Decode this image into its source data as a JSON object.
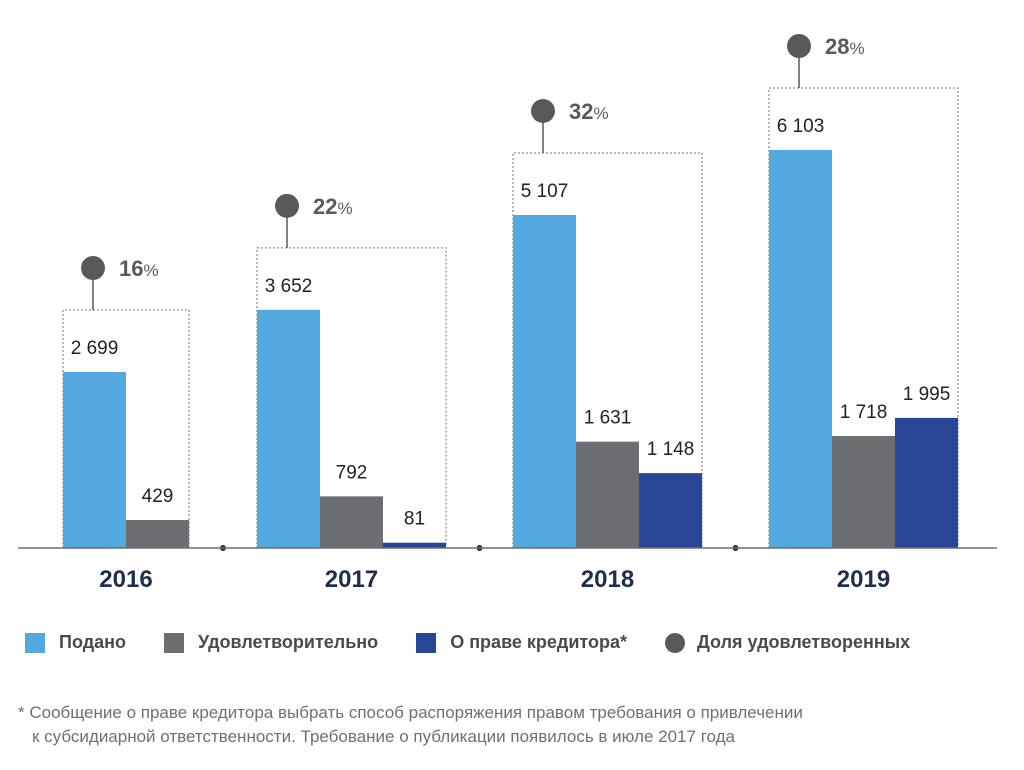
{
  "chart_data": {
    "type": "bar",
    "categories": [
      "2016",
      "2017",
      "2018",
      "2019"
    ],
    "series": [
      {
        "name": "Подано",
        "color": "#53a8e0",
        "values": [
          2699,
          3652,
          5107,
          6103
        ],
        "labels": [
          "2 699",
          "3 652",
          "5 107",
          "6 103"
        ]
      },
      {
        "name": "Удовлетворительно",
        "color": "#6d6e71",
        "values": [
          429,
          792,
          1631,
          1718
        ],
        "labels": [
          "429",
          "792",
          "1 631",
          "1 718"
        ]
      },
      {
        "name": "О праве кредитора*",
        "color": "#2a4596",
        "values": [
          null,
          81,
          1148,
          1995
        ],
        "labels": [
          "",
          "81",
          "1 148",
          "1 995"
        ]
      }
    ],
    "share": {
      "name": "Доля удовлетворенных",
      "color": "#58595b",
      "values": [
        16,
        22,
        32,
        28
      ],
      "unit": "%"
    },
    "ylim": [
      0,
      7000
    ],
    "grid": false
  },
  "legend": [
    {
      "label": "Подано",
      "color": "#53a8e0",
      "shape": "square"
    },
    {
      "label": "Удовлетворительно",
      "color": "#6d6e71",
      "shape": "square"
    },
    {
      "label": "О праве кредитора*",
      "color": "#2a4596",
      "shape": "square"
    },
    {
      "label": "Доля удовлетворенных",
      "color": "#58595b",
      "shape": "circle"
    }
  ],
  "footnote": {
    "line1": "* Сообщение о праве кредитора выбрать способ распоряжения правом требования о привлечении",
    "line2": "к субсидиарной ответственности. Требование о публикации появилось в июле 2017 года"
  }
}
